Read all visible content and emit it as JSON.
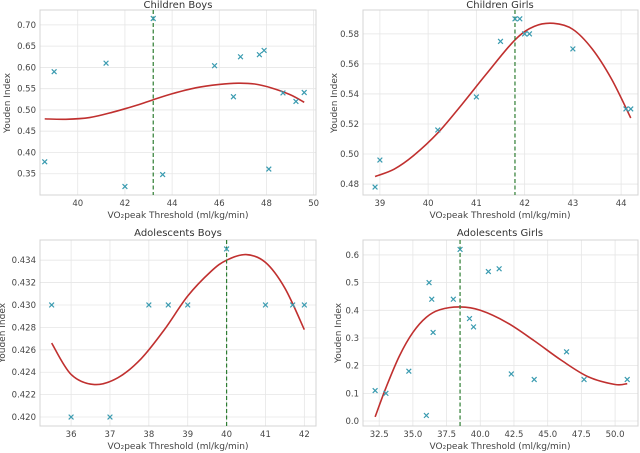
{
  "colors": {
    "marker": "#3a9bb0",
    "curve": "#c0302f",
    "threshold_line": "#2e7d32",
    "grid": "#e6e6e6"
  },
  "chart_data": [
    {
      "type": "scatter",
      "title": "Children Boys",
      "xlabel": "VO₂peak Threshold (ml/kg/min)",
      "ylabel": "Youden Index",
      "xlim": [
        38.4,
        50.1
      ],
      "ylim": [
        0.3,
        0.735
      ],
      "xticks": [
        40,
        42,
        44,
        46,
        48,
        50
      ],
      "xtick_labels": [
        "40",
        "42",
        "44",
        "46",
        "48",
        "50"
      ],
      "yticks": [
        0.35,
        0.4,
        0.45,
        0.5,
        0.55,
        0.6,
        0.65,
        0.7
      ],
      "ytick_labels": [
        "0.35",
        "0.40",
        "0.45",
        "0.50",
        "0.55",
        "0.60",
        "0.65",
        "0.70"
      ],
      "grid": true,
      "threshold_x": 43.2,
      "points": {
        "x": [
          38.6,
          39.0,
          41.2,
          42.0,
          43.2,
          43.6,
          45.8,
          46.6,
          46.9,
          47.7,
          47.9,
          48.1,
          48.7,
          49.25,
          49.6
        ],
        "y": [
          0.378,
          0.59,
          0.61,
          0.32,
          0.715,
          0.348,
          0.604,
          0.531,
          0.625,
          0.63,
          0.64,
          0.361,
          0.54,
          0.52,
          0.541
        ]
      },
      "fit_curve": {
        "x": [
          38.6,
          39.5,
          40.5,
          41.5,
          42.5,
          43.2,
          44.0,
          45.0,
          46.0,
          46.8,
          47.5,
          48.2,
          49.0,
          49.6
        ],
        "y": [
          0.479,
          0.478,
          0.482,
          0.495,
          0.511,
          0.524,
          0.538,
          0.552,
          0.56,
          0.563,
          0.561,
          0.552,
          0.536,
          0.518
        ]
      }
    },
    {
      "type": "scatter",
      "title": "Children Girls",
      "xlabel": "VO₂peak Threshold (ml/kg/min)",
      "ylabel": "Youden Index",
      "xlim": [
        38.65,
        44.35
      ],
      "ylim": [
        0.4727,
        0.5959
      ],
      "xticks": [
        39,
        40,
        41,
        42,
        43,
        44
      ],
      "xtick_labels": [
        "39",
        "40",
        "41",
        "42",
        "43",
        "44"
      ],
      "yticks": [
        0.48,
        0.5,
        0.52,
        0.54,
        0.56,
        0.58
      ],
      "ytick_labels": [
        "0.48",
        "0.50",
        "0.52",
        "0.54",
        "0.56",
        "0.58"
      ],
      "grid": true,
      "threshold_x": 41.8,
      "points": {
        "x": [
          38.9,
          39.0,
          40.2,
          41.0,
          41.5,
          41.8,
          41.9,
          42.0,
          42.1,
          43.0,
          44.1,
          44.2
        ],
        "y": [
          0.478,
          0.496,
          0.516,
          0.538,
          0.575,
          0.59,
          0.59,
          0.58,
          0.58,
          0.57,
          0.53,
          0.53
        ]
      },
      "fit_curve": {
        "x": [
          38.9,
          39.3,
          39.7,
          40.2,
          40.7,
          41.2,
          41.8,
          42.2,
          42.6,
          43.0,
          43.4,
          43.8,
          44.2
        ],
        "y": [
          0.485,
          0.49,
          0.499,
          0.514,
          0.533,
          0.553,
          0.576,
          0.585,
          0.587,
          0.583,
          0.57,
          0.55,
          0.524
        ]
      }
    },
    {
      "type": "scatter",
      "title": "Adolescents Boys",
      "xlabel": "VO₂peak Threshold (ml/kg/min)",
      "ylabel": "Youden Index",
      "xlim": [
        35.2,
        42.3
      ],
      "ylim": [
        0.4192,
        0.4358
      ],
      "xticks": [
        36,
        37,
        38,
        39,
        40,
        41,
        42
      ],
      "xtick_labels": [
        "36",
        "37",
        "38",
        "39",
        "40",
        "41",
        "42"
      ],
      "yticks": [
        0.42,
        0.422,
        0.424,
        0.426,
        0.428,
        0.43,
        0.432,
        0.434
      ],
      "ytick_labels": [
        "0.420",
        "0.422",
        "0.424",
        "0.426",
        "0.428",
        "0.430",
        "0.432",
        "0.434"
      ],
      "grid": true,
      "threshold_x": 40.0,
      "points": {
        "x": [
          35.5,
          36.0,
          37.0,
          38.0,
          38.5,
          39.0,
          40.0,
          41.0,
          41.7,
          42.0
        ],
        "y": [
          0.43,
          0.42,
          0.42,
          0.43,
          0.43,
          0.43,
          0.435,
          0.43,
          0.43,
          0.43
        ]
      },
      "fit_curve": {
        "x": [
          35.5,
          36.0,
          36.6,
          37.2,
          37.8,
          38.4,
          39.0,
          39.6,
          40.0,
          40.5,
          41.0,
          41.5,
          42.0
        ],
        "y": [
          0.4266,
          0.4238,
          0.4229,
          0.4235,
          0.4252,
          0.4278,
          0.4308,
          0.433,
          0.434,
          0.4345,
          0.4338,
          0.4315,
          0.4278
        ]
      }
    },
    {
      "type": "scatter",
      "title": "Adolescents Girls",
      "xlabel": "VO₂peak Threshold (ml/kg/min)",
      "ylabel": "Youden Index",
      "xlim": [
        31.3,
        51.7
      ],
      "ylim": [
        -0.018,
        0.654
      ],
      "xticks": [
        32.5,
        35.0,
        37.5,
        40.0,
        42.5,
        45.0,
        47.5,
        50.0
      ],
      "xtick_labels": [
        "32.5",
        "35.0",
        "37.5",
        "40.0",
        "42.5",
        "45.0",
        "47.5",
        "50.0"
      ],
      "yticks": [
        0.0,
        0.1,
        0.2,
        0.3,
        0.4,
        0.5,
        0.6
      ],
      "ytick_labels": [
        "0.0",
        "0.1",
        "0.2",
        "0.3",
        "0.4",
        "0.5",
        "0.6"
      ],
      "grid": true,
      "threshold_x": 38.5,
      "points": {
        "x": [
          32.2,
          33.0,
          34.7,
          36.0,
          36.2,
          36.4,
          36.5,
          38.0,
          38.5,
          39.2,
          39.5,
          40.6,
          41.4,
          42.3,
          44.0,
          46.4,
          47.7,
          50.9
        ],
        "y": [
          0.11,
          0.1,
          0.18,
          0.02,
          0.5,
          0.44,
          0.32,
          0.44,
          0.62,
          0.37,
          0.34,
          0.54,
          0.55,
          0.17,
          0.15,
          0.25,
          0.15,
          0.15
        ]
      },
      "fit_curve": {
        "x": [
          32.2,
          33.0,
          34.0,
          35.0,
          36.0,
          37.0,
          38.5,
          40.0,
          42.0,
          44.0,
          46.0,
          48.0,
          50.0,
          50.9
        ],
        "y": [
          0.015,
          0.12,
          0.235,
          0.32,
          0.375,
          0.402,
          0.412,
          0.4,
          0.355,
          0.29,
          0.22,
          0.16,
          0.132,
          0.135
        ]
      }
    }
  ]
}
